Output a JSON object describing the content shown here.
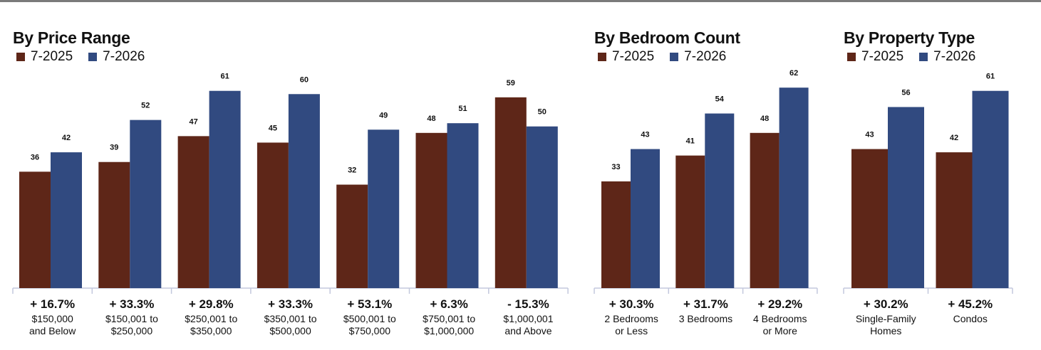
{
  "colors": {
    "series_2025": "#5e2618",
    "series_2026": "#314a80",
    "axis": "#c3c8dd"
  },
  "chart_data": [
    {
      "type": "bar",
      "title": "By Price Range",
      "legend": [
        "7-2025",
        "7-2026"
      ],
      "ylim": [
        0,
        66
      ],
      "series": [
        {
          "name": "7-2025",
          "values": [
            36,
            39,
            47,
            45,
            32,
            48,
            59
          ]
        },
        {
          "name": "7-2026",
          "values": [
            42,
            52,
            61,
            60,
            49,
            51,
            50
          ]
        }
      ],
      "changes": [
        "+ 16.7%",
        "+ 33.3%",
        "+ 29.8%",
        "+ 33.3%",
        "+ 53.1%",
        "+ 6.3%",
        "- 15.3%"
      ],
      "categories": [
        [
          "$150,000",
          "and Below"
        ],
        [
          "$150,001 to",
          "$250,000"
        ],
        [
          "$250,001 to",
          "$350,000"
        ],
        [
          "$350,001 to",
          "$500,000"
        ],
        [
          "$500,001 to",
          "$750,000"
        ],
        [
          "$750,001 to",
          "$1,000,000"
        ],
        [
          "$1,000,001",
          "and Above"
        ]
      ]
    },
    {
      "type": "bar",
      "title": "By Bedroom Count",
      "legend": [
        "7-2025",
        "7-2026"
      ],
      "ylim": [
        0,
        66
      ],
      "series": [
        {
          "name": "7-2025",
          "values": [
            33,
            41,
            48
          ]
        },
        {
          "name": "7-2026",
          "values": [
            43,
            54,
            62
          ]
        }
      ],
      "changes": [
        "+ 30.3%",
        "+ 31.7%",
        "+ 29.2%"
      ],
      "categories": [
        [
          "2 Bedrooms",
          "or Less"
        ],
        [
          "3 Bedrooms"
        ],
        [
          "4 Bedrooms",
          "or More"
        ]
      ]
    },
    {
      "type": "bar",
      "title": "By Property Type",
      "legend": [
        "7-2025",
        "7-2026"
      ],
      "ylim": [
        0,
        66
      ],
      "series": [
        {
          "name": "7-2025",
          "values": [
            43,
            42
          ]
        },
        {
          "name": "7-2026",
          "values": [
            56,
            61
          ]
        }
      ],
      "changes": [
        "+ 30.2%",
        "+ 45.2%"
      ],
      "categories": [
        [
          "Single-Family",
          "Homes"
        ],
        [
          "Condos"
        ]
      ]
    }
  ]
}
